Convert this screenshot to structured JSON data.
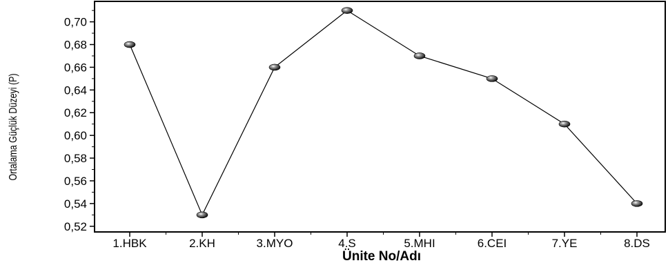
{
  "chart_data": {
    "type": "line",
    "title": "",
    "xlabel": "Ünite No/Adı",
    "ylabel": "Ortalama Güçlük Düzeyi (P)",
    "categories": [
      "1.HBK",
      "2.KH",
      "3.MYO",
      "4.S",
      "5.MHI",
      "6.CEI",
      "7.YE",
      "8.DS"
    ],
    "series": [
      {
        "values": [
          0.68,
          0.53,
          0.66,
          0.71,
          0.67,
          0.65,
          0.61,
          0.54
        ]
      }
    ],
    "ylim": [
      0.515,
      0.718
    ],
    "yticks": [
      "0,52",
      "0,54",
      "0,56",
      "0,58",
      "0,60",
      "0,62",
      "0,64",
      "0,66",
      "0,68",
      "0,70"
    ],
    "grid": false,
    "legend": "none",
    "colors": {
      "line": "#000000",
      "marker": "#000000"
    }
  }
}
